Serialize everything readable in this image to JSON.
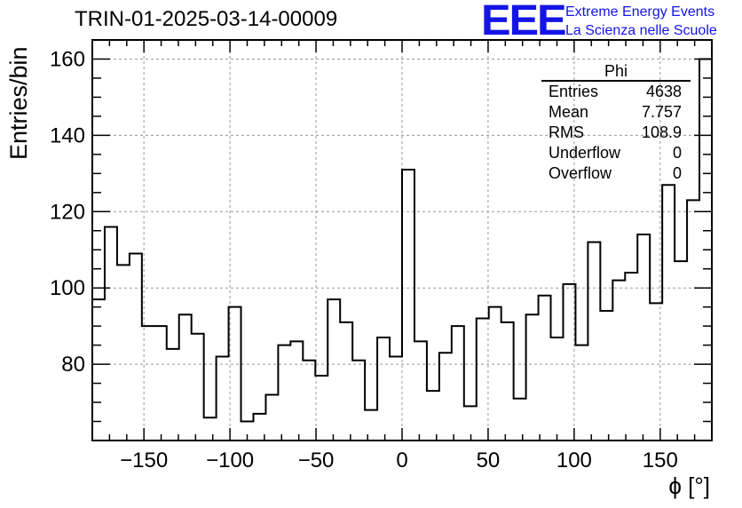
{
  "header": {
    "title": "TRIN-01-2025-03-14-00009",
    "logo_text": "EEE",
    "org_line1": "Extreme Energy Events",
    "org_line2": "La Scienza nelle Scuole"
  },
  "stats_box": {
    "title": "Phi",
    "rows": [
      {
        "label": "Entries",
        "value": "4638"
      },
      {
        "label": "Mean",
        "value": "7.757"
      },
      {
        "label": "RMS",
        "value": "108.9"
      },
      {
        "label": "Underflow",
        "value": "0"
      },
      {
        "label": "Overflow",
        "value": "0"
      }
    ]
  },
  "chart_data": {
    "type": "bar",
    "style": "step-histogram",
    "title": "TRIN-01-2025-03-14-00009",
    "xlabel": "ϕ [°]",
    "ylabel": "Entries/bin",
    "xlim": [
      -180,
      180
    ],
    "ylim": [
      60,
      165
    ],
    "bin_width": 7.2,
    "x_ticks": [
      -150,
      -100,
      -50,
      0,
      50,
      100,
      150
    ],
    "x_tick_labels": [
      "−150",
      "−100",
      "−50",
      "0",
      "50",
      "100",
      "150"
    ],
    "y_ticks": [
      80,
      100,
      120,
      140,
      160
    ],
    "y_tick_labels": [
      "80",
      "100",
      "120",
      "140",
      "160"
    ],
    "grid": true,
    "values": [
      97,
      116,
      106,
      109,
      90,
      90,
      84,
      93,
      88,
      66,
      82,
      95,
      65,
      67,
      72,
      85,
      86,
      81,
      77,
      97,
      91,
      81,
      68,
      87,
      82,
      131,
      86,
      73,
      83,
      90,
      69,
      92,
      95,
      91,
      71,
      93,
      98,
      87,
      101,
      85,
      112,
      94,
      102,
      104,
      114,
      96,
      127,
      107,
      123,
      160
    ],
    "colors": {
      "line": "#000000",
      "grid": "#999999"
    }
  }
}
